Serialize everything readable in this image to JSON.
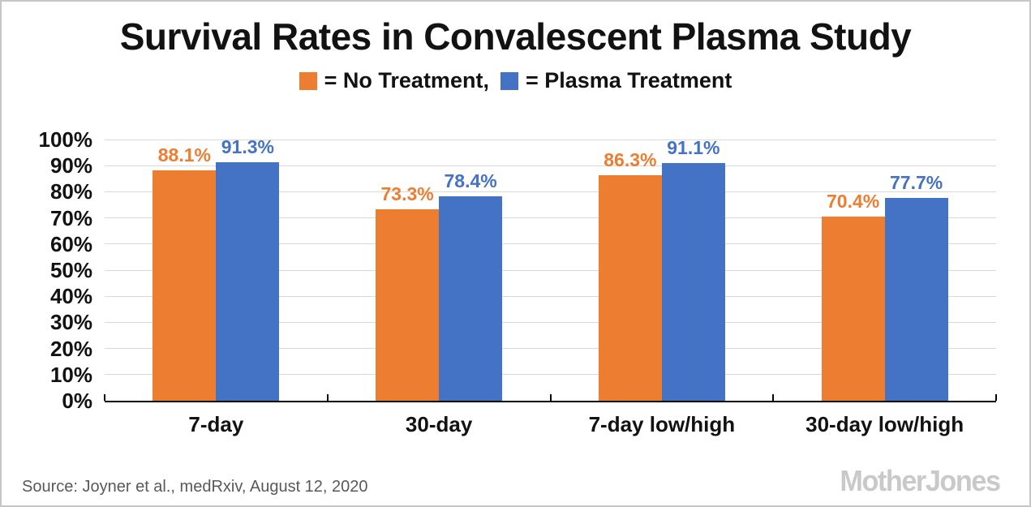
{
  "header": {
    "title": "Survival Rates in Convalescent Plasma Study",
    "legend": [
      {
        "label": "= No Treatment,",
        "color": "#ED7D31",
        "name": "no-treatment"
      },
      {
        "label": "= Plasma Treatment",
        "color": "#4472C4",
        "name": "plasma-treatment"
      }
    ]
  },
  "chart_data": {
    "type": "bar",
    "title": "Survival Rates in Convalescent Plasma Study",
    "categories": [
      "7-day",
      "30-day",
      "7-day low/high",
      "30-day low/high"
    ],
    "series": [
      {
        "name": "No Treatment",
        "color": "#ED7D31",
        "values": [
          88.1,
          73.3,
          86.3,
          70.4
        ],
        "labels": [
          "88.1%",
          "73.3%",
          "86.3%",
          "70.4%"
        ]
      },
      {
        "name": "Plasma Treatment",
        "color": "#4472C4",
        "values": [
          91.3,
          78.4,
          91.1,
          77.7
        ],
        "labels": [
          "91.3%",
          "78.4%",
          "91.1%",
          "77.7%"
        ]
      }
    ],
    "xlabel": "",
    "ylabel": "",
    "ylim": [
      0,
      100
    ],
    "ytick_step": 10,
    "y_tick_labels": [
      "0%",
      "10%",
      "20%",
      "30%",
      "40%",
      "50%",
      "60%",
      "70%",
      "80%",
      "90%",
      "100%"
    ],
    "grid": true,
    "legend_position": "top"
  },
  "footer": {
    "source": "Source: Joyner et al., medRxiv, August 12, 2020",
    "logo": "MotherJones"
  },
  "colors": {
    "no_treatment": "#ED7D31",
    "plasma_treatment": "#4472C4",
    "gridline": "#D9D9D9",
    "axis": "#000000",
    "source_text": "#595959",
    "logo": "#C9C9C9"
  }
}
